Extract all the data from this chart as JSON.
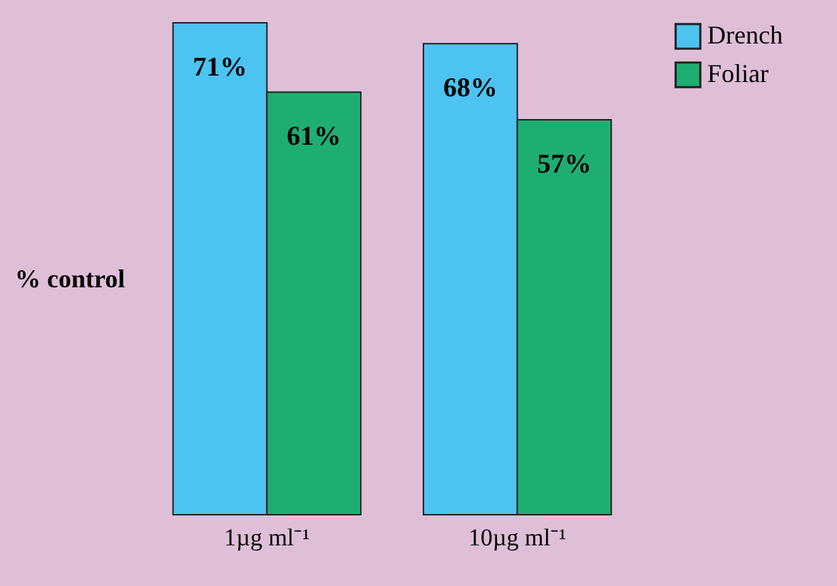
{
  "chart_data": {
    "type": "bar",
    "ylabel": "% control",
    "categories": [
      "1µg ml⁻¹",
      "10µg ml⁻¹"
    ],
    "series": [
      {
        "name": "Drench",
        "color": "#4cc3f1",
        "values": [
          71,
          68
        ],
        "value_labels": [
          "71%",
          "68%"
        ]
      },
      {
        "name": "Foliar",
        "color": "#1fae72",
        "values": [
          61,
          57
        ],
        "value_labels": [
          "61%",
          "57%"
        ]
      }
    ],
    "legend": "right",
    "grid": false
  }
}
